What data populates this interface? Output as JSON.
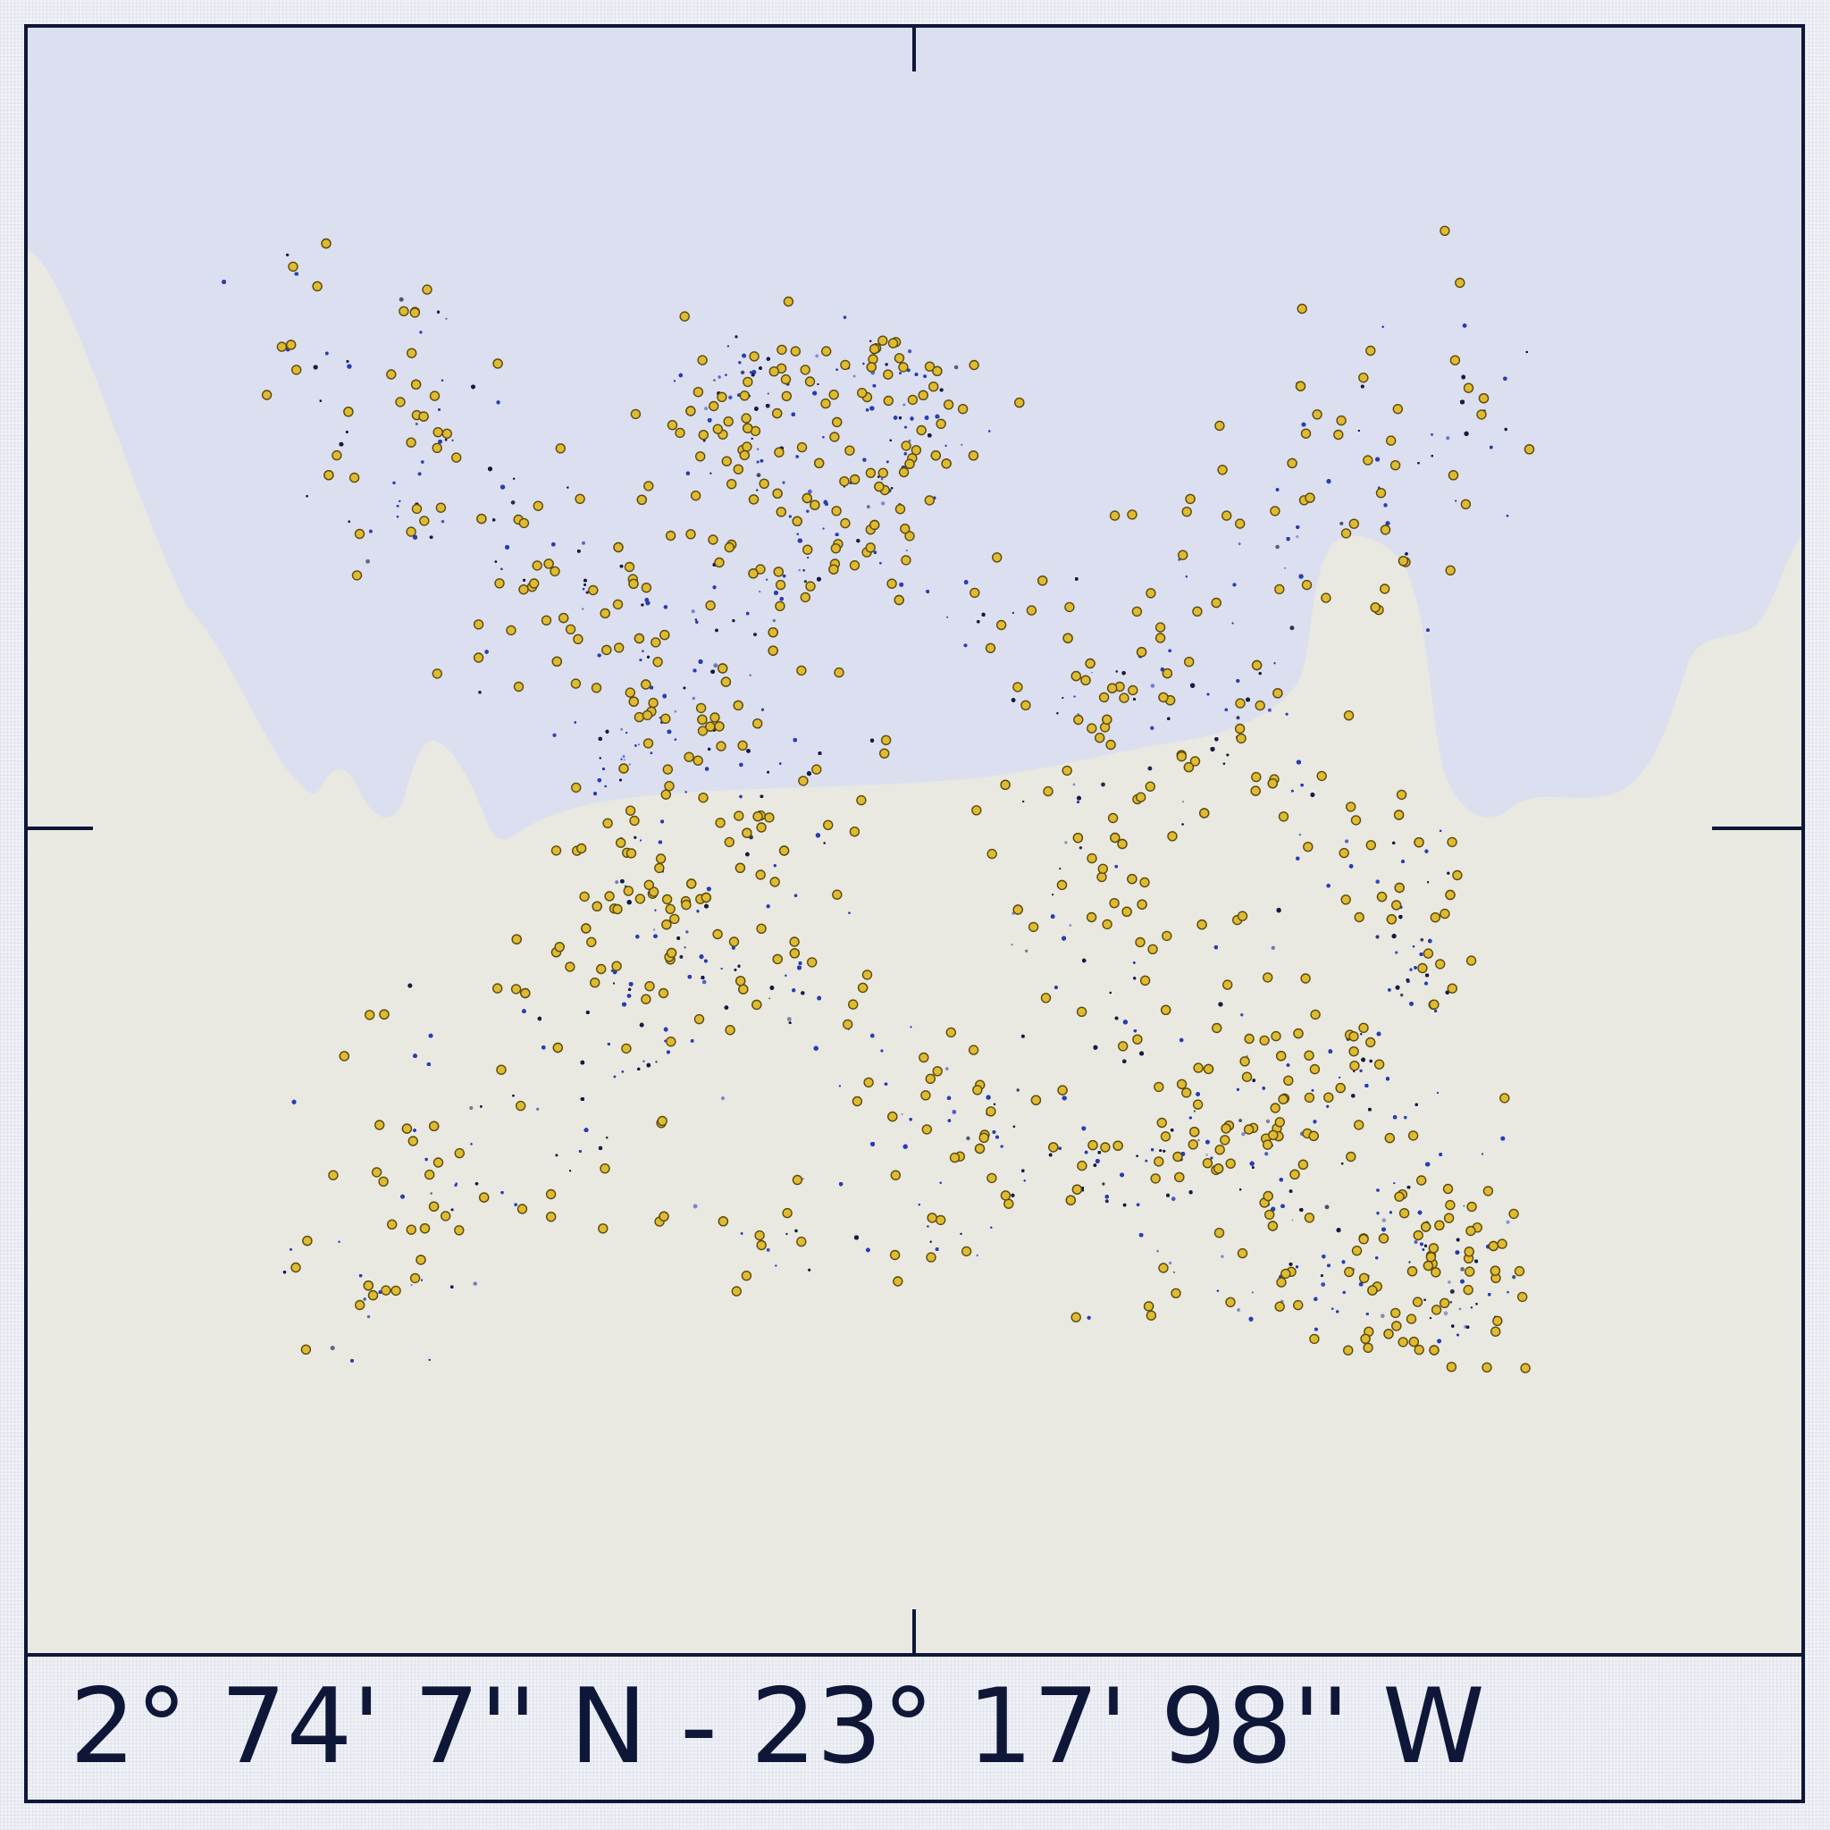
{
  "caption": "2° 74' 7'' N - 23° 17' 98'' W",
  "colors": {
    "land": "#e9e9e2",
    "water": "#dcdfef",
    "frame": "#0f1738",
    "dot_blue": "#2a3db5",
    "dot_navy": "#151c44",
    "marker_fill": "#e0bb30",
    "marker_stroke": "#5a4a10"
  }
}
